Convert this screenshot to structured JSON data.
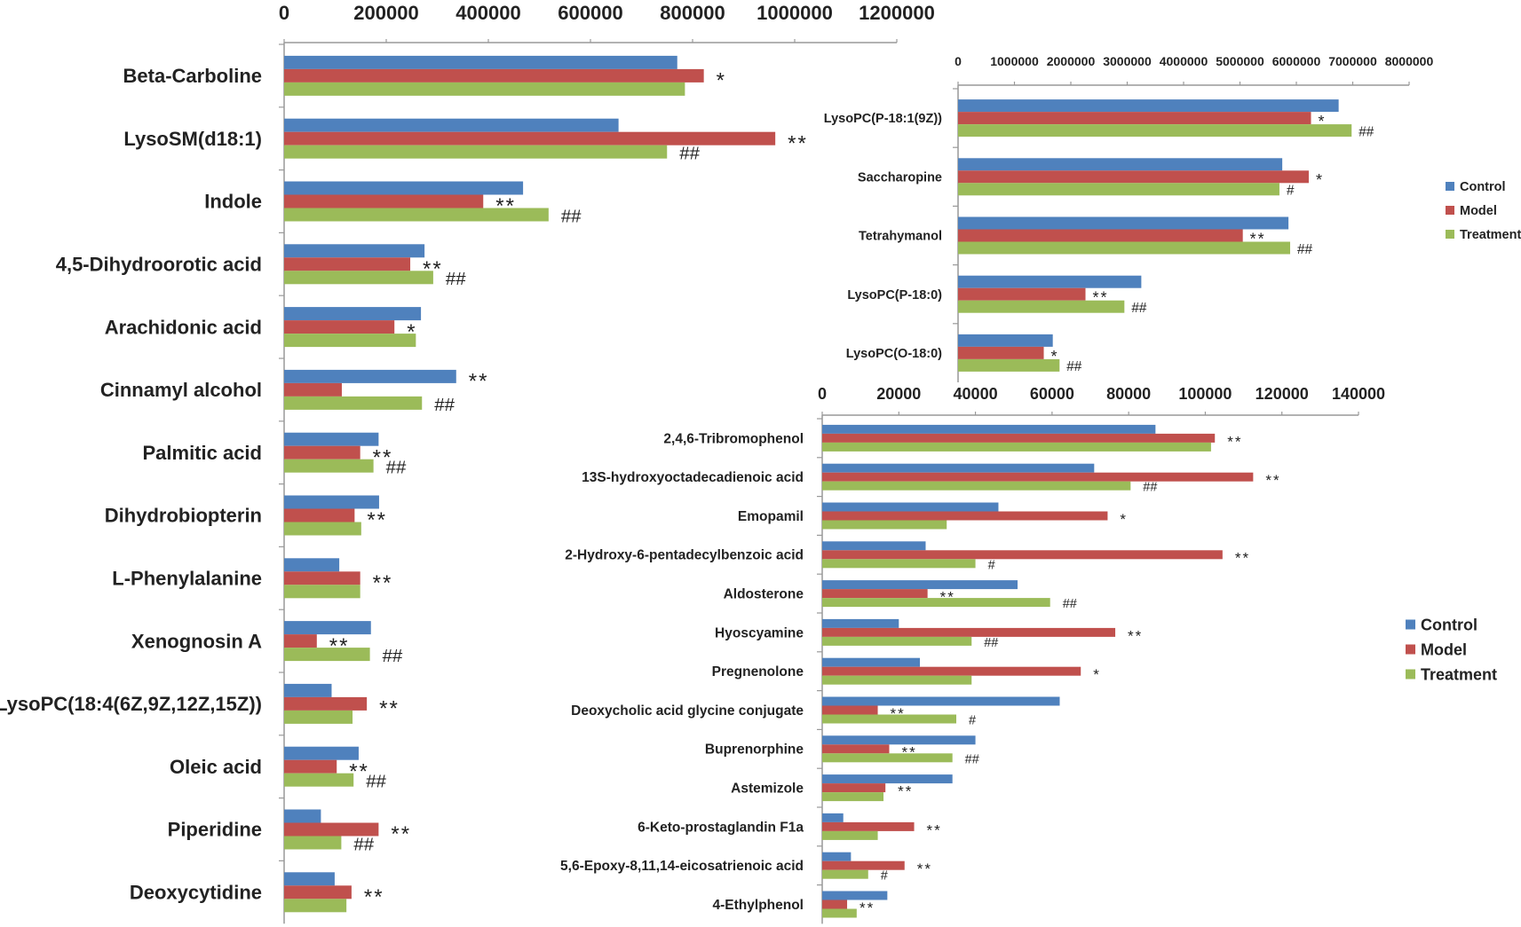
{
  "colors": {
    "control": "#4F81BD",
    "model": "#C0504D",
    "treatment": "#9BBB59",
    "axis": "#999999",
    "text": "#222222"
  },
  "chart_data": [
    {
      "type": "bar",
      "orientation": "horizontal",
      "title": "",
      "xlim": [
        0,
        1200000
      ],
      "ticks": [
        0,
        200000,
        400000,
        600000,
        800000,
        1000000,
        1200000
      ],
      "tick_labels": [
        "0",
        "200000",
        "400000",
        "600000",
        "800000",
        "1000000",
        "1200000"
      ],
      "legend": [],
      "categories": [
        "Beta-Carboline",
        "LysoSM(d18:1)",
        "Indole",
        "4,5-Dihydroorotic acid",
        "Arachidonic acid",
        "Cinnamyl alcohol",
        "Palmitic acid",
        "Dihydrobiopterin",
        "L-Phenylalanine",
        "Xenognosin A",
        "LysoPC(18:4(6Z,9Z,12Z,15Z))",
        "Oleic acid",
        "Piperidine",
        "Deoxycytidine"
      ],
      "series": [
        {
          "name": "Control",
          "values": [
            770000,
            655000,
            468000,
            275000,
            268000,
            337000,
            185000,
            186000,
            108000,
            170000,
            93000,
            146000,
            72000,
            99000
          ]
        },
        {
          "name": "Model",
          "values": [
            822000,
            962000,
            390000,
            247000,
            216000,
            113000,
            149000,
            138000,
            149000,
            64000,
            162000,
            103000,
            185000,
            132000
          ]
        },
        {
          "name": "Treatment",
          "values": [
            785000,
            750000,
            518000,
            292000,
            258000,
            270000,
            175000,
            151000,
            149000,
            168000,
            134000,
            136000,
            112000,
            122000
          ]
        }
      ],
      "annotations": [
        {
          "model": "*",
          "treatment": ""
        },
        {
          "model": "**",
          "treatment": "##"
        },
        {
          "model": "**",
          "treatment": "##"
        },
        {
          "model": "**",
          "treatment": "##"
        },
        {
          "model": "*",
          "treatment": ""
        },
        {
          "model": "**",
          "treatment": "##",
          "on": "control"
        },
        {
          "model": "**",
          "treatment": "##"
        },
        {
          "model": "**",
          "treatment": ""
        },
        {
          "model": "**",
          "treatment": ""
        },
        {
          "model": "**",
          "treatment": "##"
        },
        {
          "model": "**",
          "treatment": ""
        },
        {
          "model": "**",
          "treatment": "##"
        },
        {
          "model": "**",
          "treatment": "##"
        },
        {
          "model": "**",
          "treatment": ""
        }
      ]
    },
    {
      "type": "bar",
      "orientation": "horizontal",
      "title": "",
      "xlim": [
        0,
        8000000
      ],
      "ticks": [
        0,
        1000000,
        2000000,
        3000000,
        4000000,
        5000000,
        6000000,
        7000000,
        8000000
      ],
      "tick_labels": [
        "0",
        "1000000",
        "2000000",
        "3000000",
        "4000000",
        "5000000",
        "6000000",
        "7000000",
        "8000000"
      ],
      "legend": [
        "Control",
        "Model",
        "Treatment"
      ],
      "categories": [
        "LysoPC(P-18:1(9Z))",
        "Saccharopine",
        "Tetrahymanol",
        "LysoPC(P-18:0)",
        "LysoPC(O-18:0)"
      ],
      "series": [
        {
          "name": "Control",
          "values": [
            6750000,
            5750000,
            5860000,
            3250000,
            1680000
          ]
        },
        {
          "name": "Model",
          "values": [
            6260000,
            6220000,
            5050000,
            2260000,
            1520000
          ]
        },
        {
          "name": "Treatment",
          "values": [
            6980000,
            5700000,
            5890000,
            2950000,
            1800000
          ]
        }
      ],
      "annotations": [
        {
          "model": "*",
          "treatment": "##"
        },
        {
          "model": "*",
          "treatment": "#"
        },
        {
          "model": "**",
          "treatment": "##"
        },
        {
          "model": "**",
          "treatment": "##"
        },
        {
          "model": "*",
          "treatment": "##"
        }
      ]
    },
    {
      "type": "bar",
      "orientation": "horizontal",
      "title": "",
      "xlim": [
        0,
        140000
      ],
      "ticks": [
        0,
        20000,
        40000,
        60000,
        80000,
        100000,
        120000,
        140000
      ],
      "tick_labels": [
        "0",
        "20000",
        "40000",
        "60000",
        "80000",
        "100000",
        "120000",
        "140000"
      ],
      "legend": [
        "Control",
        "Model",
        "Treatment"
      ],
      "categories": [
        "2,4,6-Tribromophenol",
        "13S-hydroxyoctadecadienoic acid",
        "Emopamil",
        "2-Hydroxy-6-pentadecylbenzoic acid",
        "Aldosterone",
        "Hyoscyamine",
        "Pregnenolone",
        "Deoxycholic acid glycine conjugate",
        "Buprenorphine",
        "Astemizole",
        "6-Keto-prostaglandin F1a",
        "5,6-Epoxy-8,11,14-eicosatrienoic acid",
        "4-Ethylphenol"
      ],
      "series": [
        {
          "name": "Control",
          "values": [
            87000,
            71000,
            46000,
            27000,
            51000,
            20000,
            25500,
            62000,
            40000,
            34000,
            5500,
            7500,
            17000
          ]
        },
        {
          "name": "Model",
          "values": [
            102500,
            112500,
            74500,
            104500,
            27500,
            76500,
            67500,
            14500,
            17500,
            16500,
            24000,
            21500,
            6500
          ]
        },
        {
          "name": "Treatment",
          "values": [
            101500,
            80500,
            32500,
            40000,
            59500,
            39000,
            39000,
            35000,
            34000,
            16000,
            14500,
            12000,
            9000
          ]
        }
      ],
      "annotations": [
        {
          "model": "**",
          "treatment": ""
        },
        {
          "model": "**",
          "treatment": "##"
        },
        {
          "model": "*",
          "treatment": ""
        },
        {
          "model": "**",
          "treatment": "#"
        },
        {
          "model": "**",
          "treatment": "##"
        },
        {
          "model": "**",
          "treatment": "##"
        },
        {
          "model": "*",
          "treatment": ""
        },
        {
          "model": "**",
          "treatment": "#"
        },
        {
          "model": "**",
          "treatment": "##"
        },
        {
          "model": "**",
          "treatment": ""
        },
        {
          "model": "**",
          "treatment": ""
        },
        {
          "model": "**",
          "treatment": "#"
        },
        {
          "model": "**",
          "treatment": ""
        }
      ]
    }
  ]
}
